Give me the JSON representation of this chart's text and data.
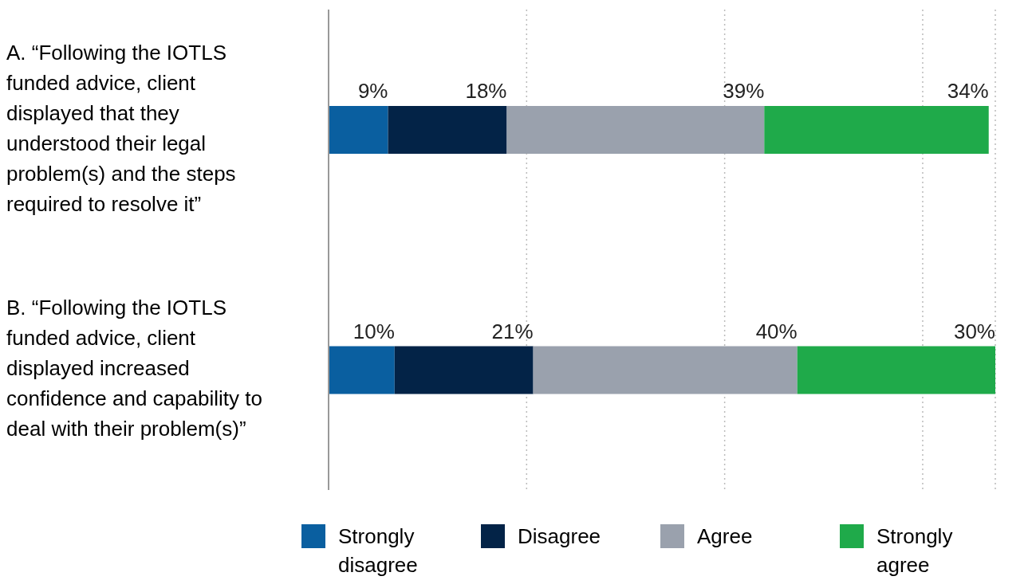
{
  "chart_data": {
    "type": "bar",
    "orientation": "horizontal",
    "stacked": true,
    "categories": [
      "A. “Following the IOTLS funded advice, client displayed that they understood their legal problem(s) and the steps required to resolve it”",
      "B. “Following the IOTLS funded advice, client displayed increased confidence and capability to deal with their problem(s)”"
    ],
    "series": [
      {
        "name": "Strongly disagree",
        "color": "#0a5fa0",
        "values": [
          9,
          10
        ],
        "value_labels": [
          "9%",
          "10%"
        ]
      },
      {
        "name": "Disagree",
        "color": "#032347",
        "values": [
          18,
          21
        ],
        "value_labels": [
          "18%",
          "21%"
        ]
      },
      {
        "name": "Agree",
        "color": "#9aa1ad",
        "values": [
          39,
          40
        ],
        "value_labels": [
          "39%",
          "40%"
        ]
      },
      {
        "name": "Strongly agree",
        "color": "#1faa4a",
        "values": [
          34,
          30
        ],
        "value_labels": [
          "34%",
          "30%"
        ]
      }
    ],
    "xlim": [
      0,
      101
    ],
    "tick_labels": "y",
    "grid": "x",
    "legend": "bottom"
  }
}
